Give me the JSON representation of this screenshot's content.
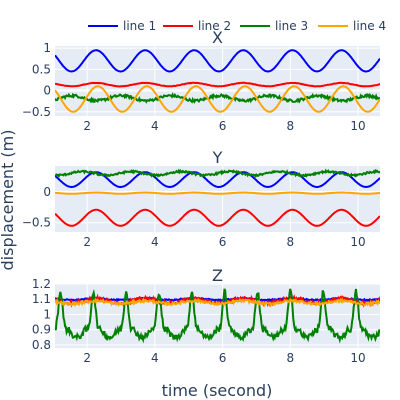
{
  "chart_data": {
    "type": "line",
    "xlabel": "time (second)",
    "ylabel": "displacement (m)",
    "legend_placement": "top-right",
    "grid": true,
    "colors": {
      "line 1": "#0000ff",
      "line 2": "#ff0000",
      "line 3": "#008000",
      "line 4": "#ffa500",
      "plot_bg": "#e5ecf6",
      "grid": "#ffffff"
    },
    "legend": [
      "line 1",
      "line 2",
      "line 3",
      "line 4"
    ],
    "x_range": [
      1.05,
      10.65
    ],
    "x_ticks": [
      2,
      4,
      6,
      8,
      10
    ],
    "subplots": [
      {
        "title": "X",
        "y_range": [
          -0.6,
          1.05
        ],
        "y_ticks": [
          -0.5,
          0,
          0.5,
          1
        ],
        "y_tick_labels": [
          "−0.5",
          "0",
          "0.5",
          "1"
        ],
        "series": [
          {
            "name": "line 1",
            "period": 1.45,
            "phase": 1.9,
            "mean": 0.7,
            "amp": 0.25,
            "noise": 0.0
          },
          {
            "name": "line 2",
            "period": 1.45,
            "phase": 1.9,
            "mean": 0.14,
            "amp": 0.04,
            "noise": 0.005
          },
          {
            "name": "line 3",
            "period": 1.45,
            "phase": 1.2,
            "mean": -0.18,
            "amp": 0.06,
            "noise": 0.03
          },
          {
            "name": "line 4",
            "period": 1.45,
            "phase": 0.5,
            "mean": -0.2,
            "amp": 0.3,
            "noise": 0.0
          }
        ]
      },
      {
        "title": "Y",
        "y_range": [
          -0.65,
          0.42
        ],
        "y_ticks": [
          -0.5,
          0
        ],
        "y_tick_labels": [
          "−0.5",
          "0"
        ],
        "series": [
          {
            "name": "line 1",
            "period": 1.45,
            "phase": 1.9,
            "mean": 0.2,
            "amp": 0.12,
            "noise": 0.0
          },
          {
            "name": "line 2",
            "period": 1.45,
            "phase": 1.9,
            "mean": -0.42,
            "amp": 0.13,
            "noise": 0.0
          },
          {
            "name": "line 3",
            "period": 1.45,
            "phase": 1.5,
            "mean": 0.3,
            "amp": 0.03,
            "noise": 0.015
          },
          {
            "name": "line 4",
            "period": 1.45,
            "phase": 1.9,
            "mean": -0.02,
            "amp": 0.01,
            "noise": 0.0
          }
        ]
      },
      {
        "title": "Z",
        "y_range": [
          0.78,
          1.2
        ],
        "y_ticks": [
          0.8,
          0.9,
          1.0,
          1.1,
          1.2
        ],
        "y_tick_labels": [
          "0.8",
          "0.9",
          "1",
          "1.1",
          "1.2"
        ],
        "series": [
          {
            "name": "line 1",
            "period": 1.45,
            "phase": 1.9,
            "mean": 1.1,
            "amp": 0.005,
            "noise": 0.004
          },
          {
            "name": "line 2",
            "period": 1.45,
            "phase": 1.9,
            "mean": 1.09,
            "amp": 0.015,
            "noise": 0.01
          },
          {
            "name": "line 3",
            "period": 0.97,
            "phase": 0.0,
            "mean": 0.95,
            "amp": 0.06,
            "noise": 0.02
          },
          {
            "name": "line 4",
            "period": 1.45,
            "phase": 1.9,
            "mean": 1.08,
            "amp": 0.01,
            "noise": 0.008
          }
        ]
      }
    ]
  }
}
